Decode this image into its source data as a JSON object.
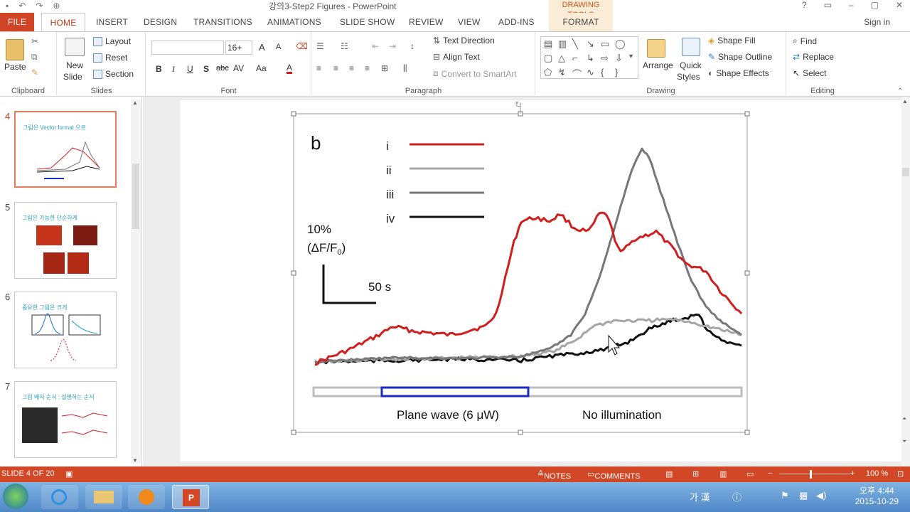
{
  "window": {
    "title": "강의3-Step2 Figures - PowerPoint",
    "context_title": "DRAWING TOOLS",
    "help": "?",
    "controls": [
      "▭",
      "–",
      "▢",
      "✕"
    ]
  },
  "tabs": [
    "FILE",
    "HOME",
    "INSERT",
    "DESIGN",
    "TRANSITIONS",
    "ANIMATIONS",
    "SLIDE SHOW",
    "REVIEW",
    "VIEW",
    "ADD-INS",
    "FORMAT"
  ],
  "signin": "Sign in",
  "ribbon": {
    "clipboard": {
      "label": "Clipboard",
      "paste": "Paste"
    },
    "slides": {
      "label": "Slides",
      "new_slide": [
        "New",
        "Slide"
      ],
      "layout": "Layout",
      "reset": "Reset",
      "section": "Section"
    },
    "font": {
      "label": "Font",
      "size": "16+",
      "bold": "B",
      "italic": "I",
      "underline": "U",
      "shadow": "S",
      "strike": "abc",
      "spacing": "AV",
      "case": "Aa",
      "color": "A",
      "grow": "A",
      "shrink": "A"
    },
    "paragraph": {
      "label": "Paragraph",
      "text_direction": "Text Direction",
      "align_text": "Align Text",
      "smartart": "Convert to SmartArt"
    },
    "drawing": {
      "label": "Drawing",
      "arrange": "Arrange",
      "quick_styles": [
        "Quick",
        "Styles"
      ],
      "shape_fill": "Shape Fill",
      "shape_outline": "Shape Outline",
      "shape_effects": "Shape Effects"
    },
    "editing": {
      "label": "Editing",
      "find": "Find",
      "replace": "Replace",
      "select": "Select"
    }
  },
  "thumbnails": [
    {
      "num": "4",
      "title": "그림은 Vector format 으로",
      "active": true
    },
    {
      "num": "5",
      "title": "그림은 가능한 단순하게",
      "active": false
    },
    {
      "num": "6",
      "title": "중요한 그림은 크게",
      "active": false
    },
    {
      "num": "7",
      "title": "그림 배치 순서 : 설명하는 순서",
      "active": false
    }
  ],
  "figure": {
    "panel_letter": "b",
    "legend": [
      "i",
      "ii",
      "iii",
      "iv"
    ],
    "scale_y_pct": "10%",
    "scale_y_unit": "(ΔF/F",
    "scale_y_sub": "0",
    "scale_y_close": ")",
    "scale_x": "50 s",
    "bar_label_left": "Plane wave (6 μW)",
    "bar_label_right": "No illumination",
    "colors": {
      "i": "#d01e1e",
      "ii": "#a6a6a6",
      "iii": "#777777",
      "iv": "#111111",
      "bar": "#1a2bc8"
    }
  },
  "status": {
    "slide": "SLIDE 4 OF 20",
    "notes": "NOTES",
    "comments": "COMMENTS",
    "zoom": "100 %"
  },
  "taskbar": {
    "ime": "가 漢",
    "time": "오후 4:44",
    "date": "2015-10-29"
  }
}
